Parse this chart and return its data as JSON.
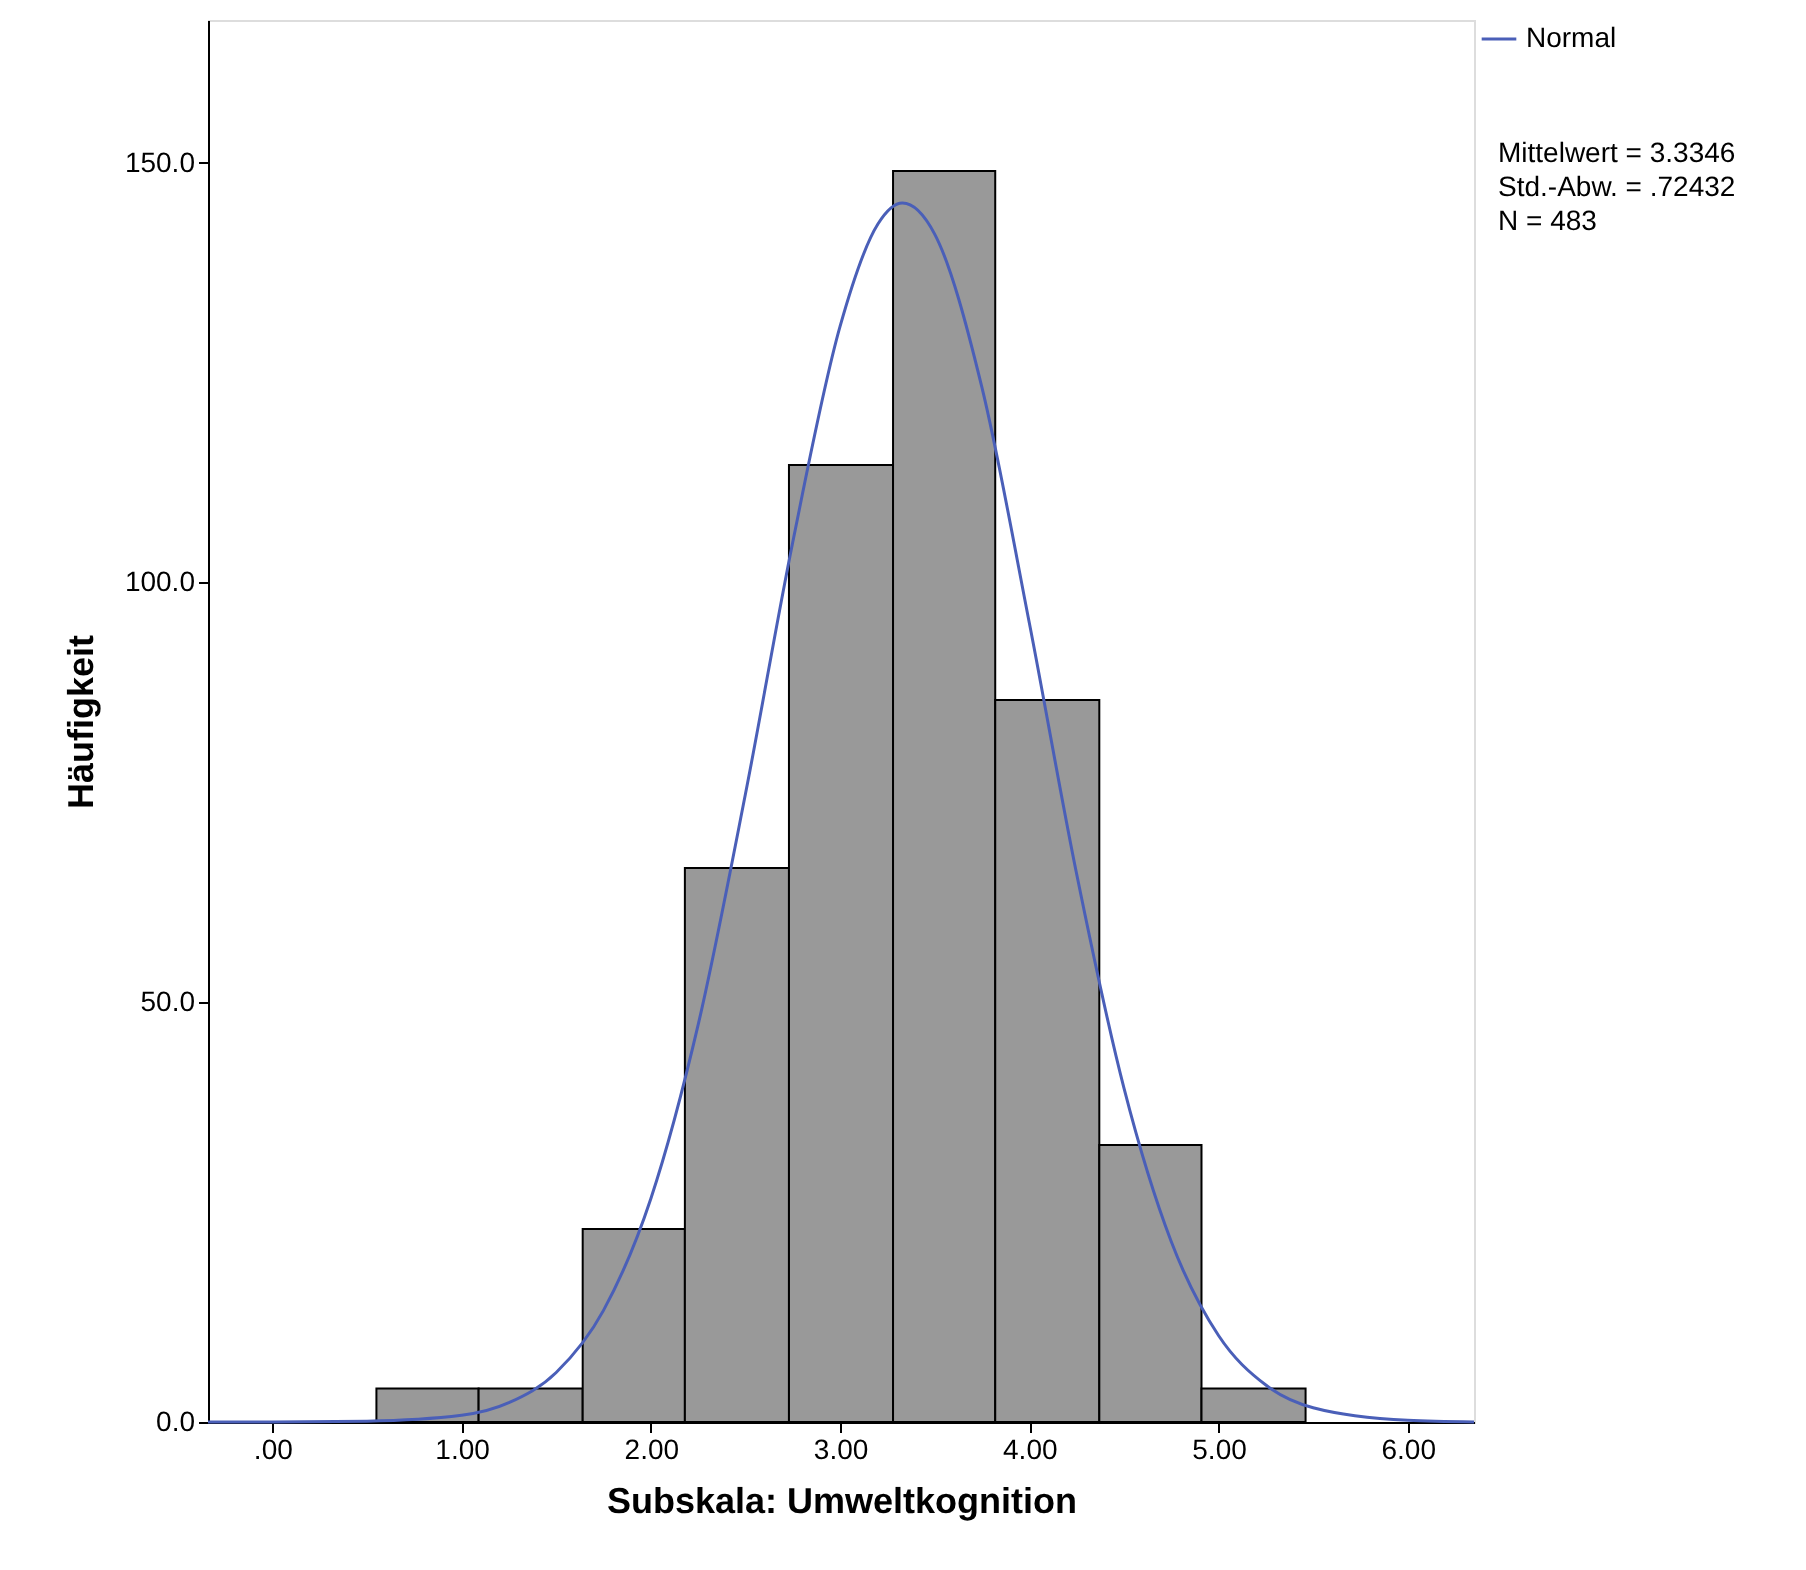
{
  "chart_data": {
    "type": "histogram",
    "xlabel": "Subskala: Umweltkognition",
    "ylabel": "Häufigkeit",
    "xlim": [
      -0.34,
      6.35
    ],
    "ylim": [
      0,
      167
    ],
    "xticks": [
      {
        "value": 0,
        "label": ".00"
      },
      {
        "value": 1,
        "label": "1.00"
      },
      {
        "value": 2,
        "label": "2.00"
      },
      {
        "value": 3,
        "label": "3.00"
      },
      {
        "value": 4,
        "label": "4.00"
      },
      {
        "value": 5,
        "label": "5.00"
      },
      {
        "value": 6,
        "label": "6.00"
      }
    ],
    "yticks": [
      {
        "value": 0,
        "label": "0.0"
      },
      {
        "value": 50,
        "label": "50.0"
      },
      {
        "value": 100,
        "label": "100.0"
      },
      {
        "value": 150,
        "label": "150.0"
      }
    ],
    "grid": false,
    "legend": "top right",
    "series": [
      {
        "type": "histogram",
        "color": "#999999",
        "bins": [
          0.55,
          1.09,
          1.64,
          2.18,
          2.73,
          3.28,
          3.82,
          4.37,
          4.91,
          5.46
        ],
        "values": [
          4,
          4,
          23,
          66,
          114,
          149,
          86,
          33,
          4
        ]
      },
      {
        "type": "line",
        "name": "Normal",
        "color": "#4a5fb8",
        "x": [
          -0.34,
          0,
          0.5,
          1.0,
          1.25,
          1.5,
          1.75,
          2.0,
          2.25,
          2.5,
          2.75,
          3.0,
          3.2,
          3.33,
          3.5,
          3.75,
          4.0,
          4.25,
          4.5,
          4.75,
          5.0,
          5.25,
          5.5,
          6.0,
          6.35
        ],
        "values": [
          0,
          0,
          0.1,
          0.8,
          2.3,
          5.9,
          13.3,
          26.6,
          47.3,
          74.8,
          104.8,
          130.5,
          142.7,
          145.2,
          141.5,
          123.2,
          95.2,
          65.3,
          39.8,
          21.5,
          10.3,
          4.4,
          1.7,
          0.2,
          0
        ]
      }
    ],
    "annotations": [
      "Mittelwert = 3.3346",
      "Std.-Abw. = .72432",
      "N = 483"
    ]
  }
}
